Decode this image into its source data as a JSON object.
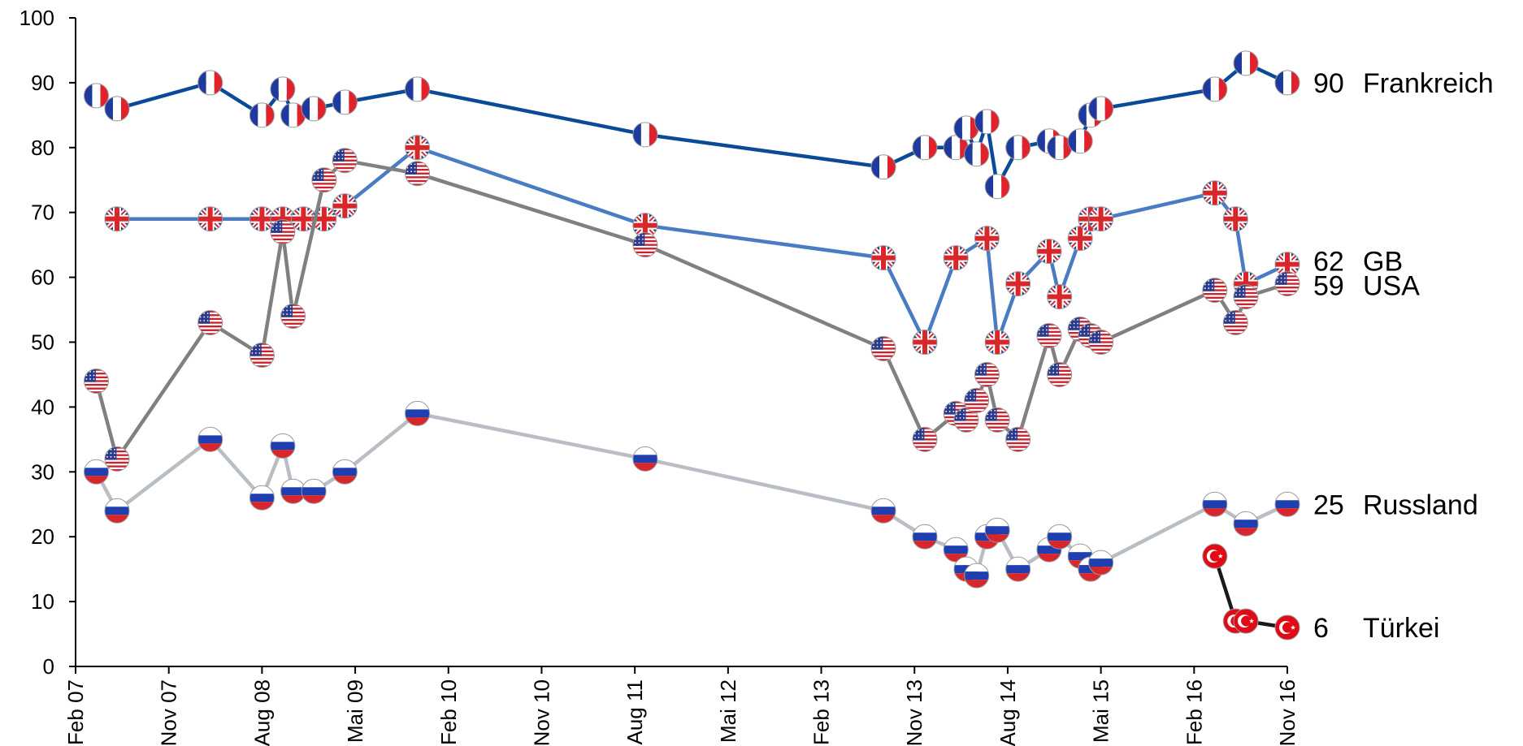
{
  "chart_data": {
    "type": "line",
    "title": "",
    "xlabel": "",
    "ylabel": "",
    "ylim": [
      0,
      100
    ],
    "yticks": [
      0,
      10,
      20,
      30,
      40,
      50,
      60,
      70,
      80,
      90,
      100
    ],
    "xlim": [
      "2007-02",
      "2016-11"
    ],
    "xticks": [
      {
        "date": "2007-02",
        "label": "Feb 07"
      },
      {
        "date": "2007-11",
        "label": "Nov 07"
      },
      {
        "date": "2008-08",
        "label": "Aug 08"
      },
      {
        "date": "2009-05",
        "label": "Mai 09"
      },
      {
        "date": "2010-02",
        "label": "Feb 10"
      },
      {
        "date": "2010-11",
        "label": "Nov 10"
      },
      {
        "date": "2011-08",
        "label": "Aug 11"
      },
      {
        "date": "2012-05",
        "label": "Mai 12"
      },
      {
        "date": "2013-02",
        "label": "Feb 13"
      },
      {
        "date": "2013-11",
        "label": "Nov 13"
      },
      {
        "date": "2014-08",
        "label": "Aug 14"
      },
      {
        "date": "2015-05",
        "label": "Mai 15"
      },
      {
        "date": "2016-02",
        "label": "Feb 16"
      },
      {
        "date": "2016-11",
        "label": "Nov 16"
      }
    ],
    "grid": false,
    "legend": "end-labels",
    "series": [
      {
        "name": "Frankreich",
        "end_value": "90",
        "color": "#0a4a96",
        "flag": "france-flag",
        "points": [
          [
            "2007-04",
            88
          ],
          [
            "2007-06",
            86
          ],
          [
            "2008-03",
            90
          ],
          [
            "2008-08",
            85
          ],
          [
            "2008-10",
            89
          ],
          [
            "2008-11",
            85
          ],
          [
            "2009-01",
            86
          ],
          [
            "2009-04",
            87
          ],
          [
            "2009-11",
            89
          ],
          [
            "2011-09",
            82
          ],
          [
            "2013-08",
            77
          ],
          [
            "2013-12",
            80
          ],
          [
            "2014-03",
            80
          ],
          [
            "2014-04",
            83
          ],
          [
            "2014-05",
            79
          ],
          [
            "2014-06",
            84
          ],
          [
            "2014-07",
            74
          ],
          [
            "2014-09",
            80
          ],
          [
            "2014-12",
            81
          ],
          [
            "2015-01",
            80
          ],
          [
            "2015-03",
            81
          ],
          [
            "2015-04",
            85
          ],
          [
            "2015-05",
            86
          ],
          [
            "2016-04",
            89
          ],
          [
            "2016-07",
            93
          ],
          [
            "2016-11",
            90
          ]
        ]
      },
      {
        "name": "GB",
        "end_value": "62",
        "color": "#4a7cc4",
        "flag": "uk-flag",
        "points": [
          [
            "2007-06",
            69
          ],
          [
            "2008-03",
            69
          ],
          [
            "2008-08",
            69
          ],
          [
            "2008-10",
            69
          ],
          [
            "2008-12",
            69
          ],
          [
            "2009-02",
            69
          ],
          [
            "2009-04",
            71
          ],
          [
            "2009-11",
            80
          ],
          [
            "2011-09",
            68
          ],
          [
            "2013-08",
            63
          ],
          [
            "2013-12",
            50
          ],
          [
            "2014-03",
            63
          ],
          [
            "2014-06",
            66
          ],
          [
            "2014-07",
            50
          ],
          [
            "2014-09",
            59
          ],
          [
            "2014-12",
            64
          ],
          [
            "2015-01",
            57
          ],
          [
            "2015-03",
            66
          ],
          [
            "2015-04",
            69
          ],
          [
            "2015-05",
            69
          ],
          [
            "2016-04",
            73
          ],
          [
            "2016-06",
            69
          ],
          [
            "2016-07",
            59
          ],
          [
            "2016-11",
            62
          ]
        ]
      },
      {
        "name": "USA",
        "end_value": "59",
        "color": "#808080",
        "flag": "usa-flag",
        "points": [
          [
            "2007-04",
            44
          ],
          [
            "2007-06",
            32
          ],
          [
            "2008-03",
            53
          ],
          [
            "2008-08",
            48
          ],
          [
            "2008-10",
            67
          ],
          [
            "2008-11",
            54
          ],
          [
            "2009-02",
            75
          ],
          [
            "2009-04",
            78
          ],
          [
            "2009-11",
            76
          ],
          [
            "2011-09",
            65
          ],
          [
            "2013-08",
            49
          ],
          [
            "2013-12",
            35
          ],
          [
            "2014-03",
            39
          ],
          [
            "2014-04",
            38
          ],
          [
            "2014-05",
            41
          ],
          [
            "2014-06",
            45
          ],
          [
            "2014-07",
            38
          ],
          [
            "2014-09",
            35
          ],
          [
            "2014-12",
            51
          ],
          [
            "2015-01",
            45
          ],
          [
            "2015-03",
            52
          ],
          [
            "2015-04",
            51
          ],
          [
            "2015-05",
            50
          ],
          [
            "2016-04",
            58
          ],
          [
            "2016-06",
            53
          ],
          [
            "2016-07",
            57
          ],
          [
            "2016-11",
            59
          ]
        ]
      },
      {
        "name": "Russland",
        "end_value": "25",
        "color": "#b8bec4",
        "flag": "russia-flag",
        "points": [
          [
            "2007-04",
            30
          ],
          [
            "2007-06",
            24
          ],
          [
            "2008-03",
            35
          ],
          [
            "2008-08",
            26
          ],
          [
            "2008-10",
            34
          ],
          [
            "2008-11",
            27
          ],
          [
            "2009-01",
            27
          ],
          [
            "2009-04",
            30
          ],
          [
            "2009-11",
            39
          ],
          [
            "2011-09",
            32
          ],
          [
            "2013-08",
            24
          ],
          [
            "2013-12",
            20
          ],
          [
            "2014-03",
            18
          ],
          [
            "2014-04",
            15
          ],
          [
            "2014-05",
            14
          ],
          [
            "2014-06",
            20
          ],
          [
            "2014-07",
            21
          ],
          [
            "2014-09",
            15
          ],
          [
            "2014-12",
            18
          ],
          [
            "2015-01",
            20
          ],
          [
            "2015-03",
            17
          ],
          [
            "2015-04",
            15
          ],
          [
            "2015-05",
            16
          ],
          [
            "2016-04",
            25
          ],
          [
            "2016-07",
            22
          ],
          [
            "2016-11",
            25
          ]
        ]
      },
      {
        "name": "Türkei",
        "end_value": "6",
        "color": "#1a1a1a",
        "flag": "turkey-flag",
        "points": [
          [
            "2016-04",
            17
          ],
          [
            "2016-06",
            7
          ],
          [
            "2016-07",
            7
          ],
          [
            "2016-11",
            6
          ]
        ]
      }
    ]
  }
}
